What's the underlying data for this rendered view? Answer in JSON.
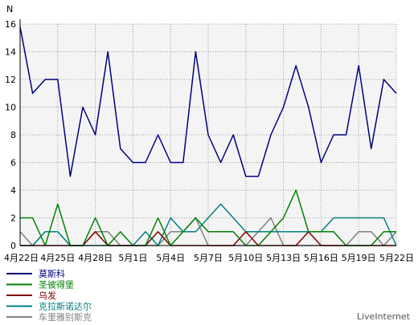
{
  "chart_data": {
    "type": "line",
    "ylabel": "N",
    "ylim": [
      0,
      16
    ],
    "yticks": [
      0,
      2,
      4,
      6,
      8,
      10,
      12,
      14,
      16
    ],
    "x_tick_labels": [
      "4月22日",
      "4月25日",
      "4月28日",
      "5月1日",
      "5月4日",
      "5月7日",
      "5月10日",
      "5月13日",
      "5月16日",
      "5月19日",
      "5月22日"
    ],
    "x_tick_positions": [
      0,
      3,
      6,
      9,
      12,
      15,
      18,
      21,
      24,
      27,
      30
    ],
    "grid": true,
    "legend_placement": "bottom-left",
    "series": [
      {
        "name": "莫斯科",
        "color": "#000080",
        "values": [
          15.8,
          11,
          12,
          12,
          5,
          10,
          8,
          14,
          7,
          6,
          6,
          8,
          6,
          6,
          14,
          8,
          6,
          8,
          5,
          5,
          8,
          10,
          13,
          10,
          6,
          8,
          8,
          13,
          7,
          12,
          11
        ]
      },
      {
        "name": "圣彼得堡",
        "color": "#008000",
        "values": [
          2,
          2,
          0,
          3,
          0,
          0,
          2,
          0,
          1,
          0,
          0,
          2,
          0,
          1,
          2,
          1,
          1,
          1,
          0,
          0,
          1,
          2,
          4,
          1,
          1,
          1,
          0,
          0,
          0,
          1,
          1
        ]
      },
      {
        "name": "乌发",
        "color": "#800000",
        "values": [
          0,
          0,
          0,
          0,
          0,
          0,
          1,
          0,
          0,
          0,
          0,
          1,
          0,
          0,
          0,
          0,
          0,
          0,
          1,
          0,
          0,
          0,
          0,
          1,
          0,
          0,
          0,
          0,
          0,
          0,
          0
        ]
      },
      {
        "name": "克拉斯诺达尔",
        "color": "#008080",
        "values": [
          0,
          0,
          1,
          1,
          0,
          0,
          0,
          0,
          0,
          0,
          1,
          0,
          2,
          1,
          1,
          2,
          3,
          2,
          1,
          1,
          1,
          1,
          1,
          1,
          1,
          2,
          2,
          2,
          2,
          2,
          0
        ]
      },
      {
        "name": "车里雅别斯克",
        "color": "#808080",
        "values": [
          1,
          0,
          1,
          1,
          0,
          0,
          1,
          1,
          0,
          0,
          0,
          0,
          1,
          1,
          2,
          0,
          0,
          0,
          0,
          1,
          2,
          0,
          0,
          0,
          0,
          0,
          0,
          1,
          1,
          0,
          1
        ]
      }
    ]
  },
  "footer": {
    "brand": "LiveInternet"
  }
}
